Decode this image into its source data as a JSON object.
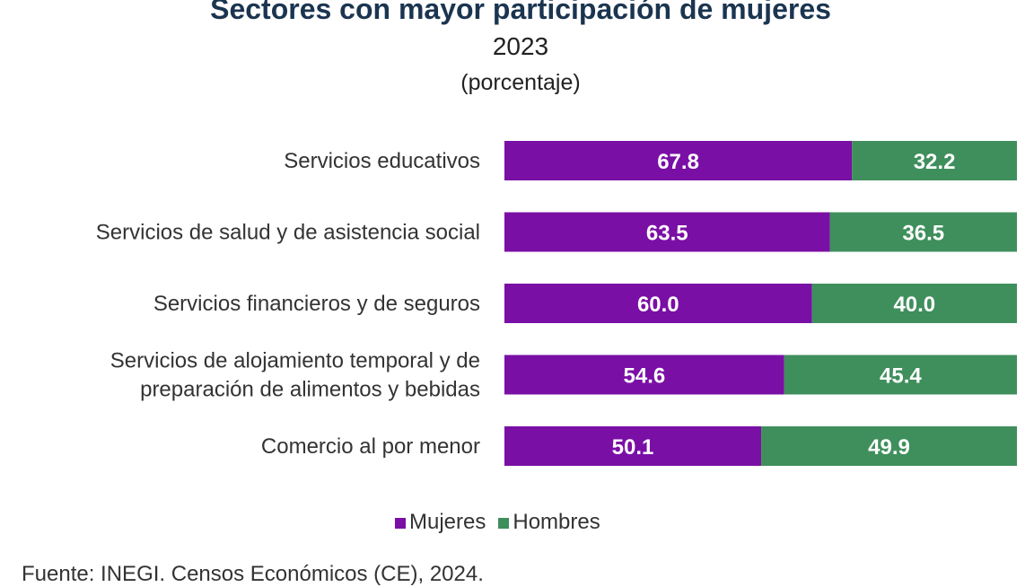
{
  "chart_data": {
    "type": "bar",
    "stacked": true,
    "orientation": "horizontal",
    "title": "Sectores con mayor participación de mujeres",
    "subtitle": "2023",
    "unit_label": "(porcentaje)",
    "categories": [
      "Servicios educativos",
      "Servicios de salud y de asistencia social",
      "Servicios financieros y de seguros",
      "Servicios de alojamiento temporal y de preparación de alimentos y bebidas",
      "Comercio al por menor"
    ],
    "category_lines": [
      [
        "Servicios educativos"
      ],
      [
        "Servicios de salud y de asistencia social"
      ],
      [
        "Servicios financieros y de seguros"
      ],
      [
        "Servicios de alojamiento temporal y de",
        "preparación de alimentos y bebidas"
      ],
      [
        "Comercio al por menor"
      ]
    ],
    "series": [
      {
        "name": "Mujeres",
        "color": "#7a0fa6",
        "values": [
          67.8,
          63.5,
          60.0,
          54.6,
          50.1
        ],
        "labels": [
          "67.8",
          "63.5",
          "60.0",
          "54.6",
          "50.1"
        ]
      },
      {
        "name": "Hombres",
        "color": "#3f8f5c",
        "values": [
          32.2,
          36.5,
          40.0,
          45.4,
          49.9
        ],
        "labels": [
          "32.2",
          "36.5",
          "40.0",
          "45.4",
          "49.9"
        ]
      }
    ],
    "xlim": [
      0,
      100
    ],
    "grid": false,
    "legend": "bottom"
  },
  "source": "Fuente: INEGI. Censos Económicos (CE), 2024."
}
